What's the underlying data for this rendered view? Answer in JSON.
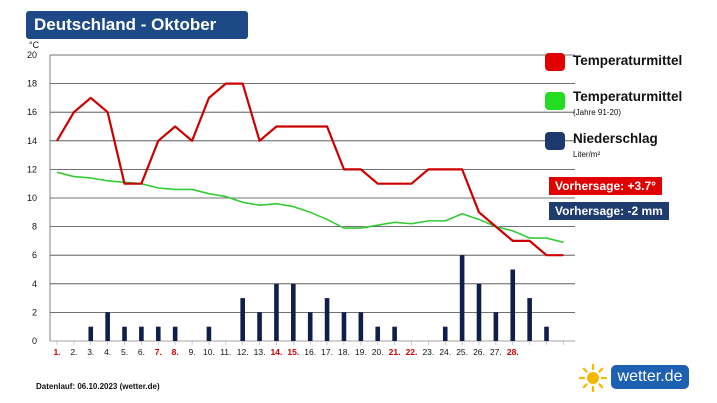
{
  "title": "Deutschland - Oktober",
  "unit_label": "°C",
  "legend": {
    "temp": {
      "label": "Temperaturmittel",
      "color": "#e00000"
    },
    "normal": {
      "label": "Temperaturmittel",
      "sublabel": "(Jahre 91-20)",
      "color": "#22dd22"
    },
    "precip": {
      "label": "Niederschlag",
      "sublabel": "Liter/m²",
      "color": "#1c3a6e"
    }
  },
  "forecast": {
    "temp_text": "Vorhersage: +3.7°",
    "temp_color": "#e00000",
    "precip_text": "Vorhersage: -2 mm",
    "precip_color": "#1f3c6e"
  },
  "footer": "Datenlauf: 06.10.2023 (wetter.de)",
  "brand": "wetter.de",
  "chart_data": {
    "type": "line",
    "ylim": [
      0,
      20
    ],
    "yticks": [
      0,
      2,
      4,
      6,
      8,
      10,
      12,
      14,
      16,
      18,
      20
    ],
    "categories": [
      "1.",
      "2.",
      "3.",
      "4.",
      "5.",
      "6.",
      "7.",
      "8.",
      "9.",
      "10.",
      "11.",
      "12.",
      "13.",
      "14.",
      "15.",
      "16.",
      "17.",
      "18.",
      "19.",
      "20.",
      "21.",
      "22.",
      "23.",
      "24.",
      "25.",
      "26.",
      "27.",
      "28.",
      "29.",
      "30.",
      "31."
    ],
    "red_labels": [
      "1.",
      "7.",
      "8.",
      "14.",
      "15.",
      "21.",
      "22.",
      "28."
    ],
    "series": [
      {
        "name": "Temperaturmittel",
        "kind": "line",
        "color": "#cc0000",
        "values": [
          14,
          16,
          17,
          16,
          11,
          11,
          14,
          15,
          14,
          17,
          18,
          18,
          14,
          15,
          15,
          15,
          15,
          12,
          12,
          11,
          11,
          11,
          12,
          12,
          12,
          9,
          8,
          7,
          7,
          6,
          6
        ]
      },
      {
        "name": "Temperaturmittel (Jahre 91-20)",
        "kind": "line",
        "color": "#33cc33",
        "values": [
          11.8,
          11.5,
          11.4,
          11.2,
          11.1,
          11.0,
          10.7,
          10.6,
          10.6,
          10.3,
          10.1,
          9.7,
          9.5,
          9.6,
          9.4,
          9.0,
          8.5,
          7.9,
          7.9,
          8.1,
          8.3,
          8.2,
          8.4,
          8.4,
          8.9,
          8.5,
          8.0,
          7.7,
          7.2,
          7.2,
          6.9
        ]
      },
      {
        "name": "Niederschlag",
        "kind": "bar",
        "color": "#0f1f4a",
        "values": [
          0,
          0,
          1,
          2,
          1,
          1,
          1,
          1,
          0,
          1,
          0,
          3,
          2,
          4,
          4,
          2,
          3,
          2,
          2,
          1,
          1,
          0,
          0,
          1,
          6,
          4,
          2,
          5,
          3,
          1,
          0
        ]
      }
    ]
  }
}
